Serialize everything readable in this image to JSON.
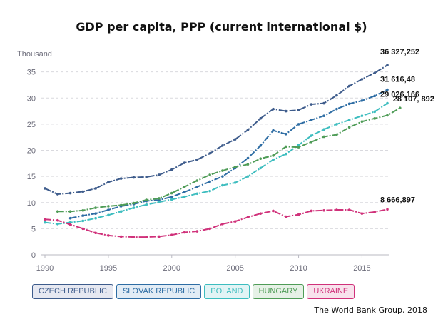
{
  "title": "GDP per capita, PPP (current international $)",
  "source": "The World Bank Group, 2018",
  "legend_title": "",
  "chart_data": {
    "type": "line",
    "title": "GDP per capita, PPP (current international $)",
    "ylabel": "Thousand",
    "xlabel": "",
    "xlim": [
      1990,
      2017
    ],
    "ylim": [
      0,
      37
    ],
    "x_ticks": [
      1990,
      1995,
      2000,
      2005,
      2010,
      2015
    ],
    "y_ticks": [
      0,
      5,
      10,
      15,
      20,
      25,
      30,
      35
    ],
    "grid": "horizontal dashed",
    "legend_position": "bottom-left",
    "series": [
      {
        "name": "CZECH REPUBLIC",
        "color": "#3e5c8c",
        "start": 1990,
        "values": [
          12.7,
          11.6,
          11.8,
          12.1,
          12.7,
          13.9,
          14.6,
          14.8,
          14.9,
          15.3,
          16.3,
          17.6,
          18.2,
          19.4,
          20.9,
          22.1,
          23.9,
          26.1,
          27.9,
          27.5,
          27.7,
          28.8,
          29.0,
          30.5,
          32.3,
          33.6,
          34.8,
          36.3
        ],
        "end_label": "36 327,252"
      },
      {
        "name": "SLOVAK REPUBLIC",
        "color": "#2e6da4",
        "start": 1992,
        "values": [
          7.0,
          7.5,
          7.9,
          8.6,
          9.3,
          9.7,
          10.3,
          10.5,
          11.1,
          12.0,
          13.0,
          14.0,
          15.0,
          16.6,
          18.5,
          20.9,
          23.8,
          23.1,
          25.0,
          25.8,
          26.6,
          27.9,
          28.9,
          29.5,
          30.4,
          31.6
        ],
        "end_label": "31 616,48"
      },
      {
        "name": "POLAND",
        "color": "#3dbdbf",
        "start": 1990,
        "values": [
          6.2,
          5.9,
          6.2,
          6.5,
          7.0,
          7.6,
          8.3,
          9.0,
          9.6,
          10.1,
          10.6,
          11.1,
          11.7,
          12.2,
          13.3,
          13.8,
          15.0,
          16.6,
          18.2,
          19.3,
          21.0,
          22.8,
          24.0,
          25.0,
          25.8,
          26.6,
          27.4,
          29.0
        ],
        "end_label": "29 026,166"
      },
      {
        "name": "HUNGARY",
        "color": "#4f9c57",
        "start": 1991,
        "values": [
          8.3,
          8.3,
          8.5,
          9.0,
          9.3,
          9.5,
          9.9,
          10.5,
          10.8,
          11.8,
          13.0,
          14.2,
          15.3,
          16.1,
          16.8,
          17.3,
          18.4,
          19.0,
          20.7,
          20.6,
          21.6,
          22.6,
          23.0,
          24.4,
          25.5,
          26.1,
          26.7,
          28.1
        ],
        "end_label": "28 107, 892"
      },
      {
        "name": "UKRAINE",
        "color": "#d0317a",
        "start": 1990,
        "values": [
          6.8,
          6.6,
          5.8,
          5.0,
          4.2,
          3.7,
          3.5,
          3.4,
          3.4,
          3.5,
          3.8,
          4.3,
          4.5,
          5.0,
          5.9,
          6.4,
          7.2,
          7.9,
          8.4,
          7.3,
          7.7,
          8.4,
          8.5,
          8.6,
          8.6,
          7.9,
          8.2,
          8.7
        ],
        "end_label": "8 666,897"
      }
    ]
  }
}
